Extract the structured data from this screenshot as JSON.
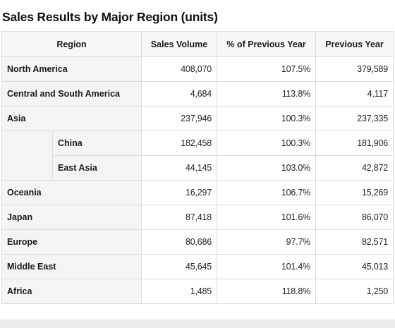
{
  "title": "Sales Results by Major Region (units)",
  "table": {
    "headers": {
      "region": "Region",
      "sales_volume": "Sales Volume",
      "pct_prev_year": "% of Previous Year",
      "prev_year": "Previous Year"
    },
    "rows": [
      {
        "region": "North America",
        "sales_volume": "408,070",
        "pct_prev_year": "107.5%",
        "prev_year": "379,589"
      },
      {
        "region": "Central and South America",
        "sales_volume": "4,684",
        "pct_prev_year": "113.8%",
        "prev_year": "4,117"
      },
      {
        "region": "Asia",
        "sales_volume": "237,946",
        "pct_prev_year": "100.3%",
        "prev_year": "237,335"
      },
      {
        "region": "China",
        "sales_volume": "182,458",
        "pct_prev_year": "100.3%",
        "prev_year": "181,906",
        "parent": "Asia"
      },
      {
        "region": "East Asia",
        "sales_volume": "44,145",
        "pct_prev_year": "103.0%",
        "prev_year": "42,872",
        "parent": "Asia"
      },
      {
        "region": "Oceania",
        "sales_volume": "16,297",
        "pct_prev_year": "106.7%",
        "prev_year": "15,269"
      },
      {
        "region": "Japan",
        "sales_volume": "87,418",
        "pct_prev_year": "101.6%",
        "prev_year": "86,070"
      },
      {
        "region": "Europe",
        "sales_volume": "80,686",
        "pct_prev_year": "97.7%",
        "prev_year": "82,571"
      },
      {
        "region": "Middle East",
        "sales_volume": "45,645",
        "pct_prev_year": "101.4%",
        "prev_year": "45,013"
      },
      {
        "region": "Africa",
        "sales_volume": "1,485",
        "pct_prev_year": "118.8%",
        "prev_year": "1,250"
      }
    ]
  },
  "colors": {
    "header_bg": "#f7f7f7",
    "region_cell_bg": "#f4f4f4",
    "border": "#dddddd"
  }
}
